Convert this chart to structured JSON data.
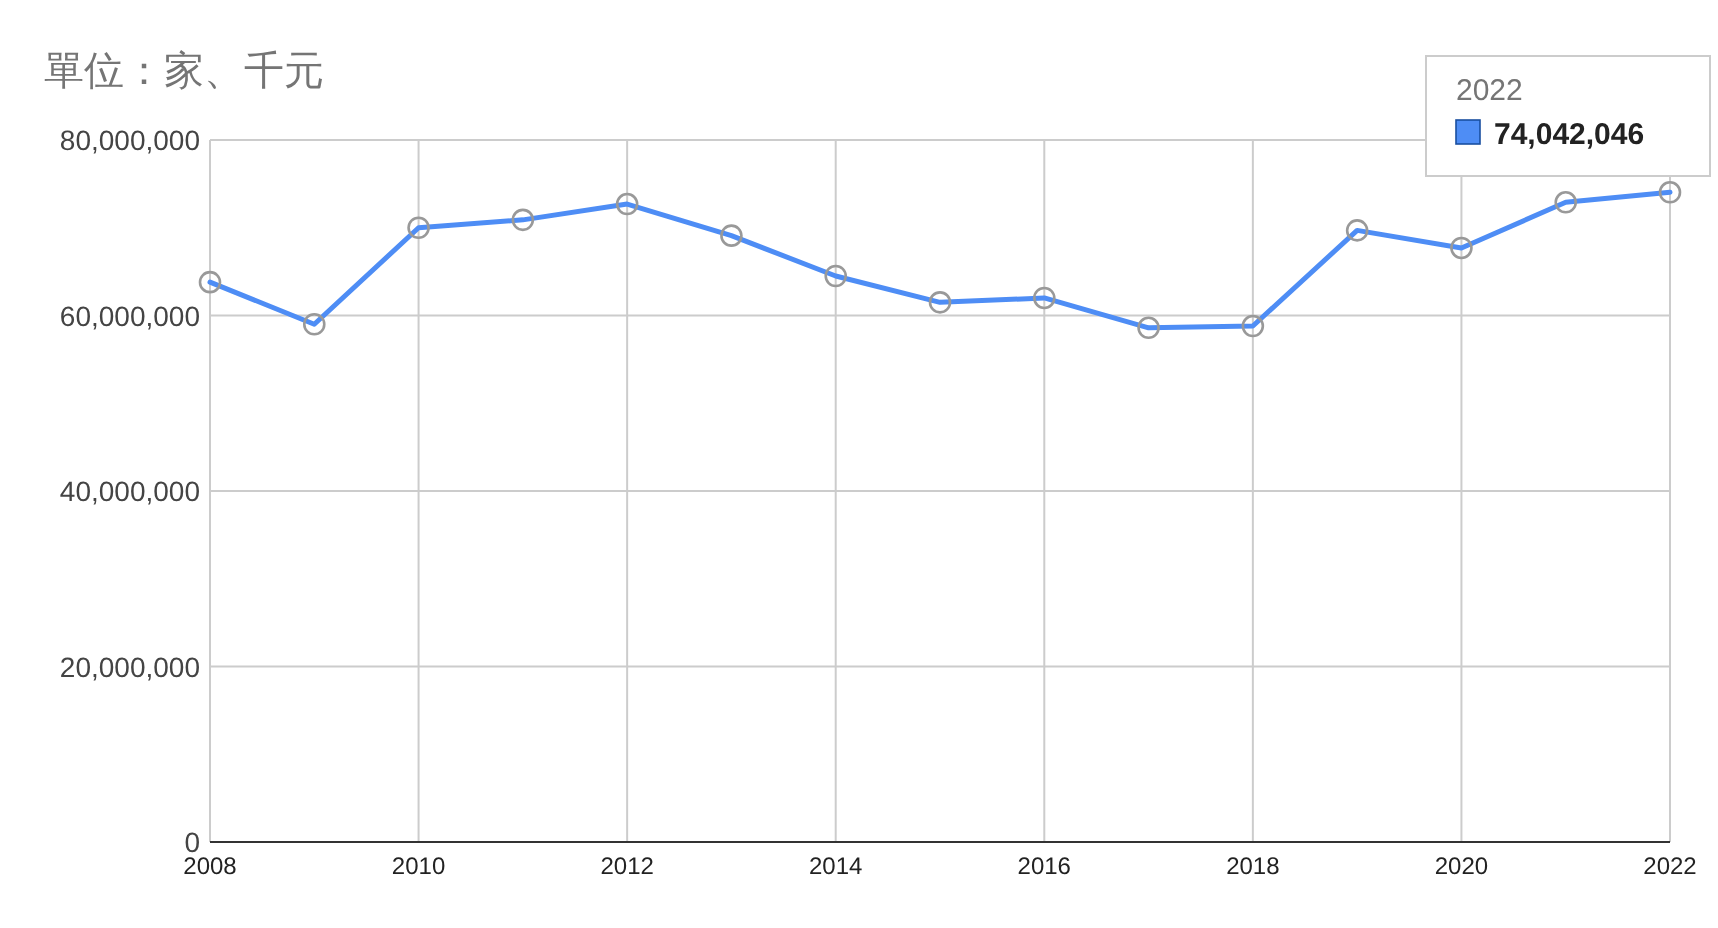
{
  "chart_data": {
    "type": "line",
    "title": "單位：家、千元",
    "x": [
      2008,
      2009,
      2010,
      2011,
      2012,
      2013,
      2014,
      2015,
      2016,
      2017,
      2018,
      2019,
      2020,
      2021,
      2022
    ],
    "series": [
      {
        "color": "#4e8df5",
        "values": [
          63800000,
          59000000,
          70000000,
          70900000,
          72700000,
          69100000,
          64500000,
          61500000,
          62000000,
          58600000,
          58800000,
          69700000,
          67700000,
          72900000,
          74042046
        ]
      }
    ],
    "xlim": [
      2008,
      2022
    ],
    "xticks": [
      2008,
      2010,
      2012,
      2014,
      2016,
      2018,
      2020,
      2022
    ],
    "ylim": [
      0,
      80000000
    ],
    "yticks": [
      0,
      {
        "value": 20000000,
        "label": "20,000,000"
      },
      {
        "value": 40000000,
        "label": "40,000,000"
      },
      {
        "value": 60000000,
        "label": "60,000,000"
      },
      {
        "value": 80000000,
        "label": "80,000,000"
      }
    ],
    "grid": true,
    "marker": "circle",
    "line_style": "solid",
    "annotations": [
      "2022",
      "74,042,046"
    ]
  }
}
